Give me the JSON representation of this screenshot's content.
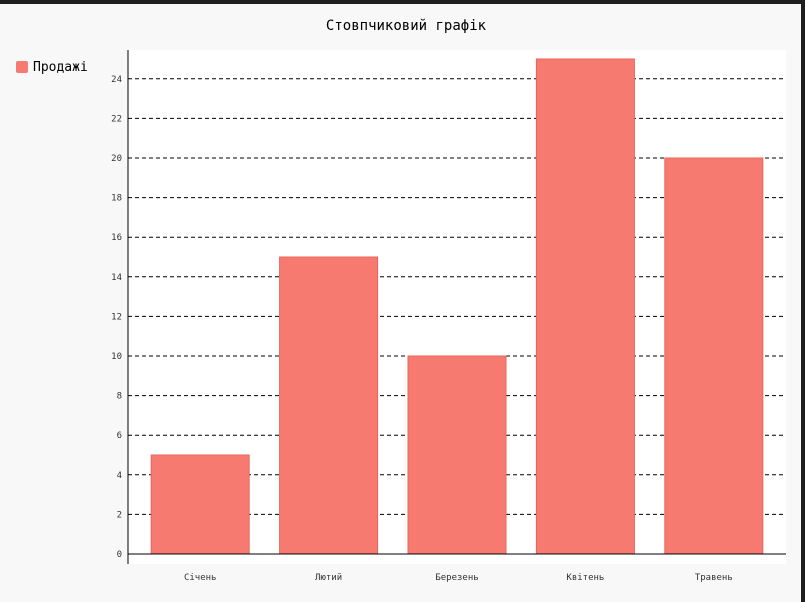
{
  "chart_data": {
    "type": "bar",
    "title": "Стовпчиковий графік",
    "categories": [
      "Січень",
      "Лютий",
      "Березень",
      "Квітень",
      "Травень"
    ],
    "series": [
      {
        "name": "Продажі",
        "values": [
          5,
          15,
          10,
          25,
          20
        ]
      }
    ],
    "ylim": [
      0,
      25
    ],
    "yticks": [
      0,
      2,
      4,
      6,
      8,
      10,
      12,
      14,
      16,
      18,
      20,
      22,
      24
    ],
    "grid": true,
    "legend_position": "top-left",
    "colors": {
      "bar_fill": "#f77a70",
      "bar_stroke": "#e8655b",
      "legend_swatch": "#f77a70",
      "grid": "#000000",
      "axis": "#000000",
      "plot_background": "#ffffff",
      "outer_background": "#f8f8f8"
    }
  }
}
